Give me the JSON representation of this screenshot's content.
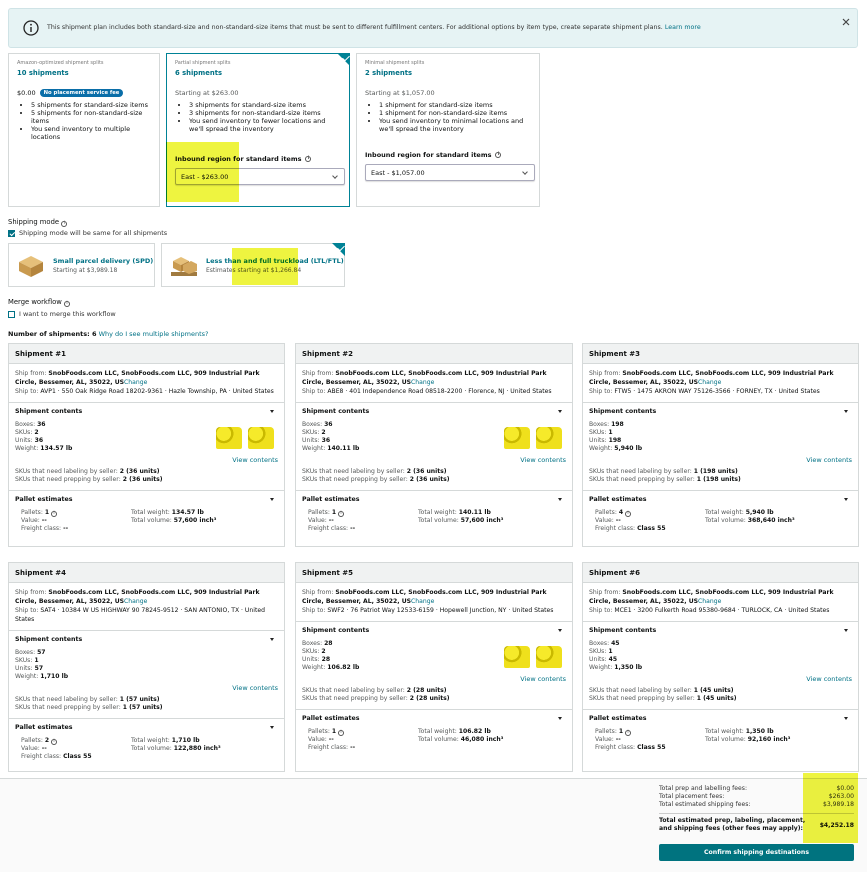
{
  "banner": {
    "text": "This shipment plan includes both standard-size and non-standard-size items that must be sent to different fulfillment centers. For additional options by item type, create separate shipment plans.",
    "link": "Learn more"
  },
  "options": [
    {
      "label": "Amazon-optimized shipment splits",
      "title": "10 shipments",
      "price": "$0.00",
      "badge": "No placement service fee",
      "bullets": [
        "5 shipments for standard-size items",
        "5 shipments for non-standard-size items",
        "You send inventory to multiple locations"
      ]
    },
    {
      "label": "Partial shipment splits",
      "title": "6 shipments",
      "price": "Starting at $263.00",
      "bullets": [
        "3 shipments for standard-size items",
        "3 shipments for non-standard-size items",
        "You send inventory to fewer locations and we'll spread the inventory"
      ],
      "region_label": "Inbound region for standard items",
      "select": "East - $263.00"
    },
    {
      "label": "Minimal shipment splits",
      "title": "2 shipments",
      "price": "Starting at $1,057.00",
      "bullets": [
        "1 shipment for standard-size items",
        "1 shipment for non-standard-size items",
        "You send inventory to minimal locations and we'll spread the inventory"
      ],
      "region_label": "Inbound region for standard items",
      "select": "East - $1,057.00"
    }
  ],
  "shipping_mode": {
    "label": "Shipping mode",
    "checkbox": "Shipping mode will be same for all shipments",
    "options": [
      {
        "title": "Small parcel delivery (SPD)",
        "sub": "Starting at $3,989.18"
      },
      {
        "title": "Less than and full truckload (LTL/FTL)",
        "sub": "Estimates starting at $1,266.84"
      }
    ]
  },
  "merge": {
    "label": "Merge workflow",
    "checkbox": "I want to merge this workflow"
  },
  "count": {
    "label": "Number of shipments: 6",
    "link": "Why do I see multiple shipments?"
  },
  "labels": {
    "ship_from": "Ship from:",
    "ship_to": "Ship to:",
    "change": "Change",
    "contents": "Shipment contents",
    "boxes": "Boxes:",
    "skus": "SKUs:",
    "units": "Units:",
    "weight": "Weight:",
    "view": "View contents",
    "labeling": "SKUs that need labeling by seller:",
    "prepping": "SKUs that need prepping by seller:",
    "pallet_estimates": "Pallet estimates",
    "pallets": "Pallets:",
    "value": "Value:",
    "freight": "Freight class:",
    "total_weight": "Total weight:",
    "total_volume": "Total volume:"
  },
  "ship_from": "SnobFoods.com LLC, SnobFoods.com LLC, 909 Industrial Park Circle, Bessemer, AL, 35022, US",
  "shipments": [
    {
      "title": "Shipment #1",
      "ship_to": "AVP1 · 550 Oak Ridge Road 18202-9361 · Hazle Township, PA · United States",
      "boxes": 36,
      "skus": 2,
      "units": 36,
      "weight": "134.57 lb",
      "labeling": "2 (36 units)",
      "prepping": "2 (36 units)",
      "pallets": 1,
      "value": "--",
      "freight": "--",
      "total_weight": "134.57 lb",
      "total_volume": "57,600 inch³"
    },
    {
      "title": "Shipment #2",
      "ship_to": "ABE8 · 401 Independence Road 08518-2200 · Florence, NJ · United States",
      "boxes": 36,
      "skus": 2,
      "units": 36,
      "weight": "140.11 lb",
      "labeling": "2 (36 units)",
      "prepping": "2 (36 units)",
      "pallets": 1,
      "value": "--",
      "freight": "--",
      "total_weight": "140.11 lb",
      "total_volume": "57,600 inch³"
    },
    {
      "title": "Shipment #3",
      "ship_to": "FTW5 · 1475 AKRON WAY 75126-3566 · FORNEY, TX · United States",
      "boxes": 198,
      "skus": 1,
      "units": 198,
      "weight": "5,940 lb",
      "labeling": "1 (198 units)",
      "prepping": "1 (198 units)",
      "pallets": 4,
      "value": "--",
      "freight": "Class 55",
      "total_weight": "5,940 lb",
      "total_volume": "368,640 inch³"
    },
    {
      "title": "Shipment #4",
      "ship_to": "SAT4 · 10384 W US HIGHWAY 90 78245-9512 · SAN ANTONIO, TX · United States",
      "boxes": 57,
      "skus": 1,
      "units": 57,
      "weight": "1,710 lb",
      "labeling": "1 (57 units)",
      "prepping": "1 (57 units)",
      "pallets": 2,
      "value": "--",
      "freight": "Class 55",
      "total_weight": "1,710 lb",
      "total_volume": "122,880 inch³"
    },
    {
      "title": "Shipment #5",
      "ship_to": "SWF2 · 76 Patriot Way 12533-6159 · Hopewell Junction, NY · United States",
      "boxes": 28,
      "skus": 2,
      "units": 28,
      "weight": "106.82 lb",
      "labeling": "2 (28 units)",
      "prepping": "2 (28 units)",
      "pallets": 1,
      "value": "--",
      "freight": "--",
      "total_weight": "106.82 lb",
      "total_volume": "46,080 inch³"
    },
    {
      "title": "Shipment #6",
      "ship_to": "MCE1 · 3200 Fulkerth Road 95380-9684 · TURLOCK, CA · United States",
      "boxes": 45,
      "skus": 1,
      "units": 45,
      "weight": "1,350 lb",
      "labeling": "1 (45 units)",
      "prepping": "1 (45 units)",
      "pallets": 1,
      "value": "--",
      "freight": "Class 55",
      "total_weight": "1,350 lb",
      "total_volume": "92,160 inch³"
    }
  ],
  "summary": {
    "rows": [
      [
        "Total prep and labelling fees:",
        "$0.00"
      ],
      [
        "Total placement fees:",
        "$263.00"
      ],
      [
        "Total estimated shipping fees:",
        "$3,989.18"
      ]
    ],
    "total_label": "Total estimated prep, labeling, placement, and shipping fees (other fees may apply):",
    "total": "$4,252.18",
    "button": "Confirm shipping destinations"
  }
}
